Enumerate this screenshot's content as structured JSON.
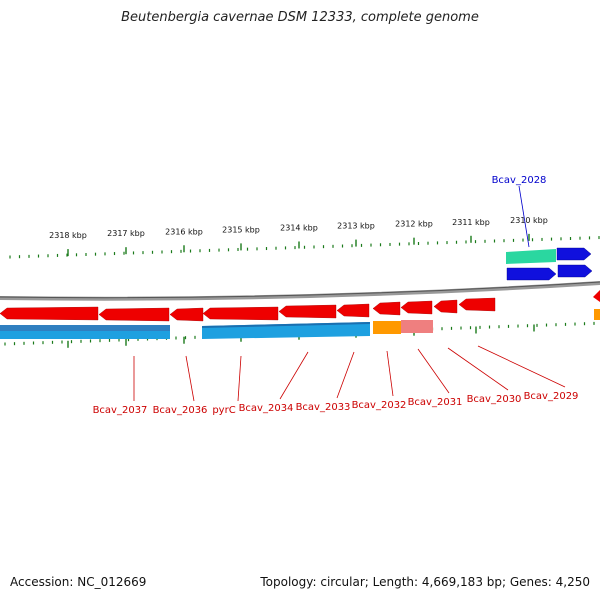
{
  "title": "Beutenbergia cavernae DSM 12333, complete genome",
  "footer": {
    "accession": "Accession: NC_012669",
    "summary": "Topology: circular; Length: 4,669,183 bp; Genes: 4,250"
  },
  "colors": {
    "forward_gene": "#ee0000",
    "reverse_cds": "#1ea0e0",
    "rna": "#2ad7a0",
    "other": "#ff9900",
    "pseudo": "#ef7f7f",
    "blue_gene": "#1010dd",
    "tick": "#1a7a1a",
    "label_red": "#cc0000",
    "label_blue": "#0000cc",
    "backbone": "#888888"
  },
  "scale_labels": [
    "2318 kbp",
    "2317 kbp",
    "2316 kbp",
    "2315 kbp",
    "2314 kbp",
    "2313 kbp",
    "2312 kbp",
    "2311 kbp",
    "2310 kbp"
  ],
  "gene_labels": [
    {
      "text": "Bcav_2028",
      "strand": "top"
    },
    {
      "text": "Bcav_2037",
      "strand": "bottom"
    },
    {
      "text": "Bcav_2036",
      "strand": "bottom"
    },
    {
      "text": "pyrC",
      "strand": "bottom"
    },
    {
      "text": "Bcav_2034",
      "strand": "bottom"
    },
    {
      "text": "Bcav_2033",
      "strand": "bottom"
    },
    {
      "text": "Bcav_2032",
      "strand": "bottom"
    },
    {
      "text": "Bcav_2031",
      "strand": "bottom"
    },
    {
      "text": "Bcav_2030",
      "strand": "bottom"
    },
    {
      "text": "Bcav_2029",
      "strand": "bottom"
    }
  ]
}
